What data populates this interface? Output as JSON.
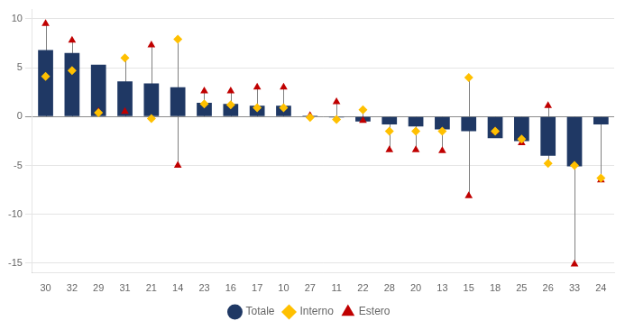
{
  "chart_data": {
    "type": "bar",
    "categories": [
      "30",
      "32",
      "29",
      "31",
      "21",
      "14",
      "23",
      "16",
      "17",
      "10",
      "27",
      "11",
      "22",
      "28",
      "20",
      "13",
      "15",
      "18",
      "25",
      "26",
      "33",
      "24"
    ],
    "series": [
      {
        "name": "Totale",
        "type": "bar",
        "color": "#1f3864",
        "values": [
          6.8,
          6.5,
          5.3,
          3.6,
          3.4,
          3.0,
          1.4,
          1.3,
          1.1,
          1.1,
          0.1,
          -0.1,
          -0.5,
          -0.8,
          -1.0,
          -1.3,
          -1.5,
          -2.2,
          -2.5,
          -4.0,
          -5.1,
          -0.8
        ]
      },
      {
        "name": "Interno",
        "type": "scatter",
        "marker": "diamond",
        "color": "#ffc000",
        "values": [
          4.1,
          4.7,
          0.4,
          6.0,
          -0.2,
          7.9,
          1.3,
          1.2,
          0.9,
          0.9,
          -0.1,
          -0.3,
          0.7,
          -1.5,
          -1.5,
          -1.5,
          4.0,
          -1.5,
          -2.3,
          -4.8,
          -5.0,
          -6.3
        ]
      },
      {
        "name": "Estero",
        "type": "scatter",
        "marker": "triangle",
        "color": "#c00000",
        "values": [
          9.5,
          7.8,
          0.5,
          0.5,
          7.3,
          -5.0,
          2.6,
          2.6,
          3.0,
          3.0,
          0.1,
          1.5,
          -0.4,
          -3.4,
          -3.4,
          -3.5,
          -8.1,
          -1.5,
          -2.7,
          1.1,
          -15.1,
          -6.5
        ]
      }
    ],
    "ylim": [
      -16,
      11
    ],
    "yticks": [
      -15,
      -10,
      -5,
      0,
      5,
      10
    ],
    "grid": true,
    "legend": "bottom"
  }
}
